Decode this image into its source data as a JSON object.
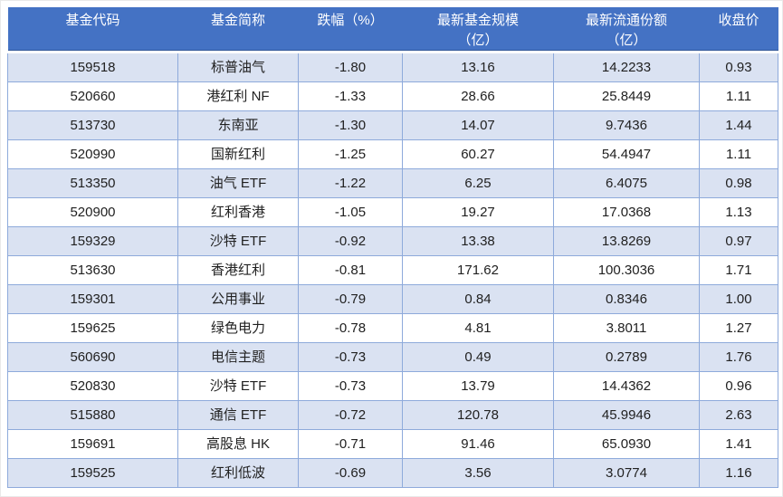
{
  "chart_data": {
    "type": "table",
    "columns": [
      {
        "id": "code",
        "label": "基金代码",
        "lines": [
          "基金代码"
        ]
      },
      {
        "id": "name",
        "label": "基金简称",
        "lines": [
          "基金简称"
        ]
      },
      {
        "id": "change",
        "label": "跌幅（%）",
        "lines": [
          "跌幅（%）"
        ]
      },
      {
        "id": "scale",
        "label": "最新基金规模（亿）",
        "lines": [
          "最新基金规模",
          "（亿）"
        ]
      },
      {
        "id": "shares",
        "label": "最新流通份额（亿）",
        "lines": [
          "最新流通份额",
          "（亿）"
        ]
      },
      {
        "id": "close",
        "label": "收盘价",
        "lines": [
          "收盘价"
        ]
      }
    ],
    "rows": [
      [
        "159518",
        "标普油气",
        "-1.80",
        "13.16",
        "14.2233",
        "0.93"
      ],
      [
        "520660",
        "港红利 NF",
        "-1.33",
        "28.66",
        "25.8449",
        "1.11"
      ],
      [
        "513730",
        "东南亚",
        "-1.30",
        "14.07",
        "9.7436",
        "1.44"
      ],
      [
        "520990",
        "国新红利",
        "-1.25",
        "60.27",
        "54.4947",
        "1.11"
      ],
      [
        "513350",
        "油气 ETF",
        "-1.22",
        "6.25",
        "6.4075",
        "0.98"
      ],
      [
        "520900",
        "红利香港",
        "-1.05",
        "19.27",
        "17.0368",
        "1.13"
      ],
      [
        "159329",
        "沙特 ETF",
        "-0.92",
        "13.38",
        "13.8269",
        "0.97"
      ],
      [
        "513630",
        "香港红利",
        "-0.81",
        "171.62",
        "100.3036",
        "1.71"
      ],
      [
        "159301",
        "公用事业",
        "-0.79",
        "0.84",
        "0.8346",
        "1.00"
      ],
      [
        "159625",
        "绿色电力",
        "-0.78",
        "4.81",
        "3.8011",
        "1.27"
      ],
      [
        "560690",
        "电信主题",
        "-0.73",
        "0.49",
        "0.2789",
        "1.76"
      ],
      [
        "520830",
        "沙特 ETF",
        "-0.73",
        "13.79",
        "14.4362",
        "0.96"
      ],
      [
        "515880",
        "通信 ETF",
        "-0.72",
        "120.78",
        "45.9946",
        "2.63"
      ],
      [
        "159691",
        "高股息 HK",
        "-0.71",
        "91.46",
        "65.0930",
        "1.41"
      ],
      [
        "159525",
        "红利低波",
        "-0.69",
        "3.56",
        "3.0774",
        "1.16"
      ]
    ]
  },
  "colors": {
    "header_bg": "#4472C4",
    "header_edge": "#2F5597",
    "header_text": "#FFFFFF",
    "band_bg": "#DAE2F2",
    "plain_bg": "#FFFFFF",
    "cell_border": "#8EAADB",
    "body_text": "#212121"
  }
}
